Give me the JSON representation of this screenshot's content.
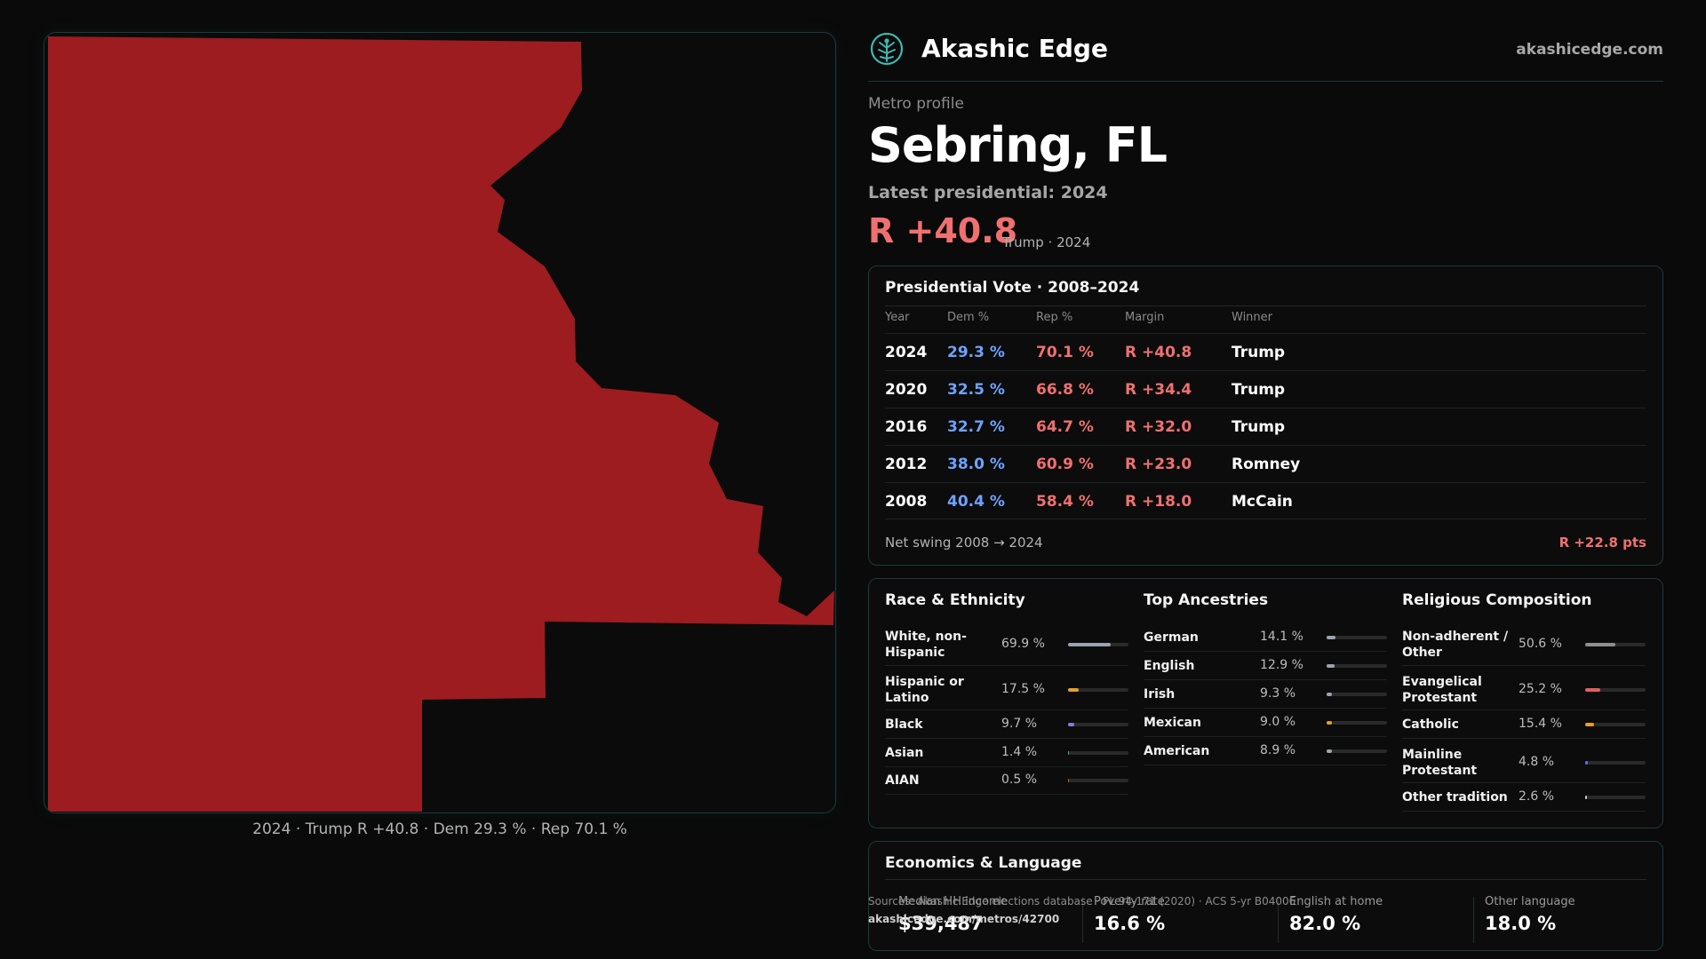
{
  "map": {
    "caption": "2024 · Trump R +40.8 · Dem 29.3 % · Rep 70.1 %",
    "fill_color": "#9c1c1f"
  },
  "header": {
    "brand": "Akashic Edge",
    "site": "akashicedge.com",
    "logo_icon": "tree-of-life-icon"
  },
  "profile": {
    "eyebrow": "Metro profile",
    "title": "Sebring, FL",
    "latest_label": "Latest presidential: 2024",
    "margin": "R +40.8",
    "margin_sub": "Trump · 2024"
  },
  "presidential": {
    "title": "Presidential Vote · 2008–2024",
    "columns": [
      "Year",
      "Dem %",
      "Rep %",
      "Margin",
      "Winner"
    ],
    "rows": [
      {
        "year": "2024",
        "dem": "29.3 %",
        "rep": "70.1 %",
        "margin": "R +40.8",
        "winner": "Trump"
      },
      {
        "year": "2020",
        "dem": "32.5 %",
        "rep": "66.8 %",
        "margin": "R +34.4",
        "winner": "Trump"
      },
      {
        "year": "2016",
        "dem": "32.7 %",
        "rep": "64.7 %",
        "margin": "R +32.0",
        "winner": "Trump"
      },
      {
        "year": "2012",
        "dem": "38.0 %",
        "rep": "60.9 %",
        "margin": "R +23.0",
        "winner": "Romney"
      },
      {
        "year": "2008",
        "dem": "40.4 %",
        "rep": "58.4 %",
        "margin": "R +18.0",
        "winner": "McCain"
      }
    ],
    "swing_label": "Net swing 2008 → 2024",
    "swing_value": "R +22.8 pts"
  },
  "race": {
    "title": "Race & Ethnicity",
    "items": [
      {
        "label": "White, non-Hispanic",
        "value": "69.9 %",
        "pct": 69.9,
        "color": "#9aa3b0"
      },
      {
        "label": "Hispanic or Latino",
        "value": "17.5 %",
        "pct": 17.5,
        "color": "#e0a030"
      },
      {
        "label": "Black",
        "value": "9.7 %",
        "pct": 9.7,
        "color": "#8a7ae0"
      },
      {
        "label": "Asian",
        "value": "1.4 %",
        "pct": 1.4,
        "color": "#3fb28a"
      },
      {
        "label": "AIAN",
        "value": "0.5 %",
        "pct": 0.5,
        "color": "#b05a3a"
      }
    ]
  },
  "ancestry": {
    "title": "Top Ancestries",
    "items": [
      {
        "label": "German",
        "value": "14.1 %",
        "pct": 14.1,
        "color": "#9aa3b0"
      },
      {
        "label": "English",
        "value": "12.9 %",
        "pct": 12.9,
        "color": "#9aa3b0"
      },
      {
        "label": "Irish",
        "value": "9.3 %",
        "pct": 9.3,
        "color": "#9aa3b0"
      },
      {
        "label": "Mexican",
        "value": "9.0 %",
        "pct": 9.0,
        "color": "#e0a030"
      },
      {
        "label": "American",
        "value": "8.9 %",
        "pct": 8.9,
        "color": "#9aa3b0"
      }
    ]
  },
  "religion": {
    "title": "Religious Composition",
    "items": [
      {
        "label": "Non-adherent / Other",
        "value": "50.6 %",
        "pct": 50.6,
        "color": "#8f8f8f"
      },
      {
        "label": "Evangelical Protestant",
        "value": "25.2 %",
        "pct": 25.2,
        "color": "#e06060"
      },
      {
        "label": "Catholic",
        "value": "15.4 %",
        "pct": 15.4,
        "color": "#e0a030"
      },
      {
        "label": "Mainline Protestant",
        "value": "4.8 %",
        "pct": 4.8,
        "color": "#4a7ae0"
      },
      {
        "label": "Other tradition",
        "value": "2.6 %",
        "pct": 2.6,
        "color": "#cccccc"
      }
    ]
  },
  "economics": {
    "title": "Economics & Language",
    "stats": [
      {
        "label": "Median HH income",
        "value": "$39,487"
      },
      {
        "label": "Poverty rate",
        "value": "16.6 %"
      },
      {
        "label": "English at home",
        "value": "82.0 %"
      },
      {
        "label": "Other language",
        "value": "18.0 %"
      }
    ]
  },
  "source": {
    "line": "Sources: Akashic Edge elections database · PL 94-171 (2020) · ACS 5-yr B04006",
    "url": "akashicedge.com/metros/42700"
  }
}
